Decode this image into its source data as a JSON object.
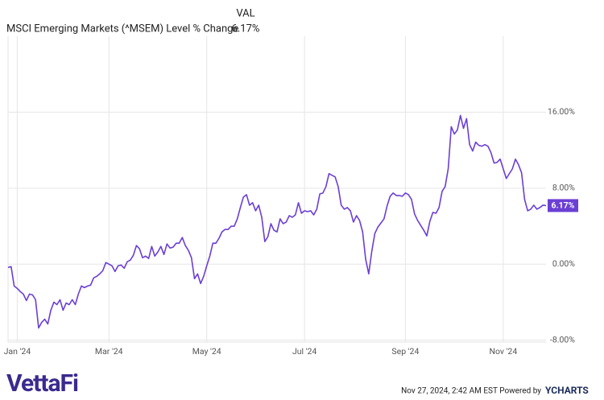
{
  "chart_data": {
    "type": "line",
    "title": "MSCI Emerging Markets (^MSEM) Level % Change",
    "legend": {
      "column": "VAL",
      "value_label": "6.17%"
    },
    "series": [
      {
        "name": "MSCI Emerging Markets (^MSEM) Level % Change",
        "color": "#6b3fd4",
        "values": [
          -0.34,
          -0.26,
          -2.3,
          -2.55,
          -2.89,
          -3.15,
          -3.83,
          -3.15,
          -3.23,
          -3.74,
          -6.72,
          -6.13,
          -5.79,
          -6.3,
          -4.85,
          -4.0,
          -4.26,
          -3.74,
          -4.85,
          -4.09,
          -4.26,
          -3.74,
          -4.26,
          -3.15,
          -2.3,
          -2.47,
          -2.3,
          -2.21,
          -1.45,
          -1.28,
          -1.02,
          -0.68,
          0.17,
          0.0,
          -0.17,
          -0.77,
          -0.17,
          -0.09,
          -0.43,
          0.26,
          0.43,
          0.94,
          1.96,
          1.62,
          0.68,
          0.85,
          0.6,
          1.87,
          0.85,
          1.28,
          1.87,
          1.02,
          2.13,
          1.7,
          1.79,
          2.21,
          2.21,
          2.81,
          1.96,
          1.45,
          0.68,
          -1.53,
          -1.02,
          -2.04,
          -1.28,
          -0.17,
          0.85,
          2.21,
          2.21,
          2.72,
          3.4,
          3.66,
          3.66,
          4.0,
          4.0,
          4.77,
          5.96,
          7.06,
          7.32,
          6.21,
          6.47,
          5.62,
          6.21,
          4.94,
          2.38,
          2.89,
          4.26,
          3.57,
          3.4,
          4.77,
          4.26,
          4.43,
          5.11,
          4.94,
          5.19,
          6.47,
          5.36,
          5.62,
          5.53,
          5.62,
          5.19,
          5.79,
          7.4,
          7.49,
          8.17,
          9.53,
          9.36,
          9.19,
          8.17,
          6.21,
          5.79,
          5.96,
          5.62,
          4.43,
          5.11,
          4.6,
          3.4,
          0.51,
          -1.02,
          1.36,
          3.23,
          3.91,
          4.34,
          4.77,
          6.13,
          7.15,
          7.49,
          7.23,
          7.23,
          7.15,
          7.49,
          7.32,
          6.81,
          5.28,
          4.6,
          4.08,
          3.57,
          2.98,
          4.51,
          5.45,
          5.36,
          5.96,
          7.66,
          8.17,
          10.04,
          14.47,
          13.7,
          14.13,
          15.66,
          14.3,
          15.32,
          12.59,
          11.91,
          12.85,
          12.51,
          12.42,
          12.59,
          12.42,
          11.74,
          10.64,
          10.72,
          11.06,
          10.04,
          9.02,
          9.53,
          10.04,
          11.06,
          10.47,
          9.62,
          6.81,
          5.62,
          5.79,
          6.21,
          5.79,
          5.96,
          6.21,
          6.17
        ]
      }
    ],
    "xlim": [
      0,
      176
    ],
    "xticks": [
      {
        "value": 3,
        "label": "Jan '24"
      },
      {
        "value": 33,
        "label": "Mar '24"
      },
      {
        "value": 65,
        "label": "May '24"
      },
      {
        "value": 97,
        "label": "Jul '24"
      },
      {
        "value": 130,
        "label": "Sep '24"
      },
      {
        "value": 162,
        "label": "Nov '24"
      }
    ],
    "ylim": [
      -8.2,
      24
    ],
    "yticks": [
      {
        "value": -8,
        "label": "-8.00%"
      },
      {
        "value": 0,
        "label": "0.00%"
      },
      {
        "value": 8,
        "label": "8.00%"
      },
      {
        "value": 16,
        "label": "16.00%"
      }
    ],
    "grid": true
  },
  "footer": {
    "timestamp": "Nov 27, 2024, 2:42 AM EST Powered by",
    "brand": "YCHARTS",
    "logo": "VettaFi"
  }
}
